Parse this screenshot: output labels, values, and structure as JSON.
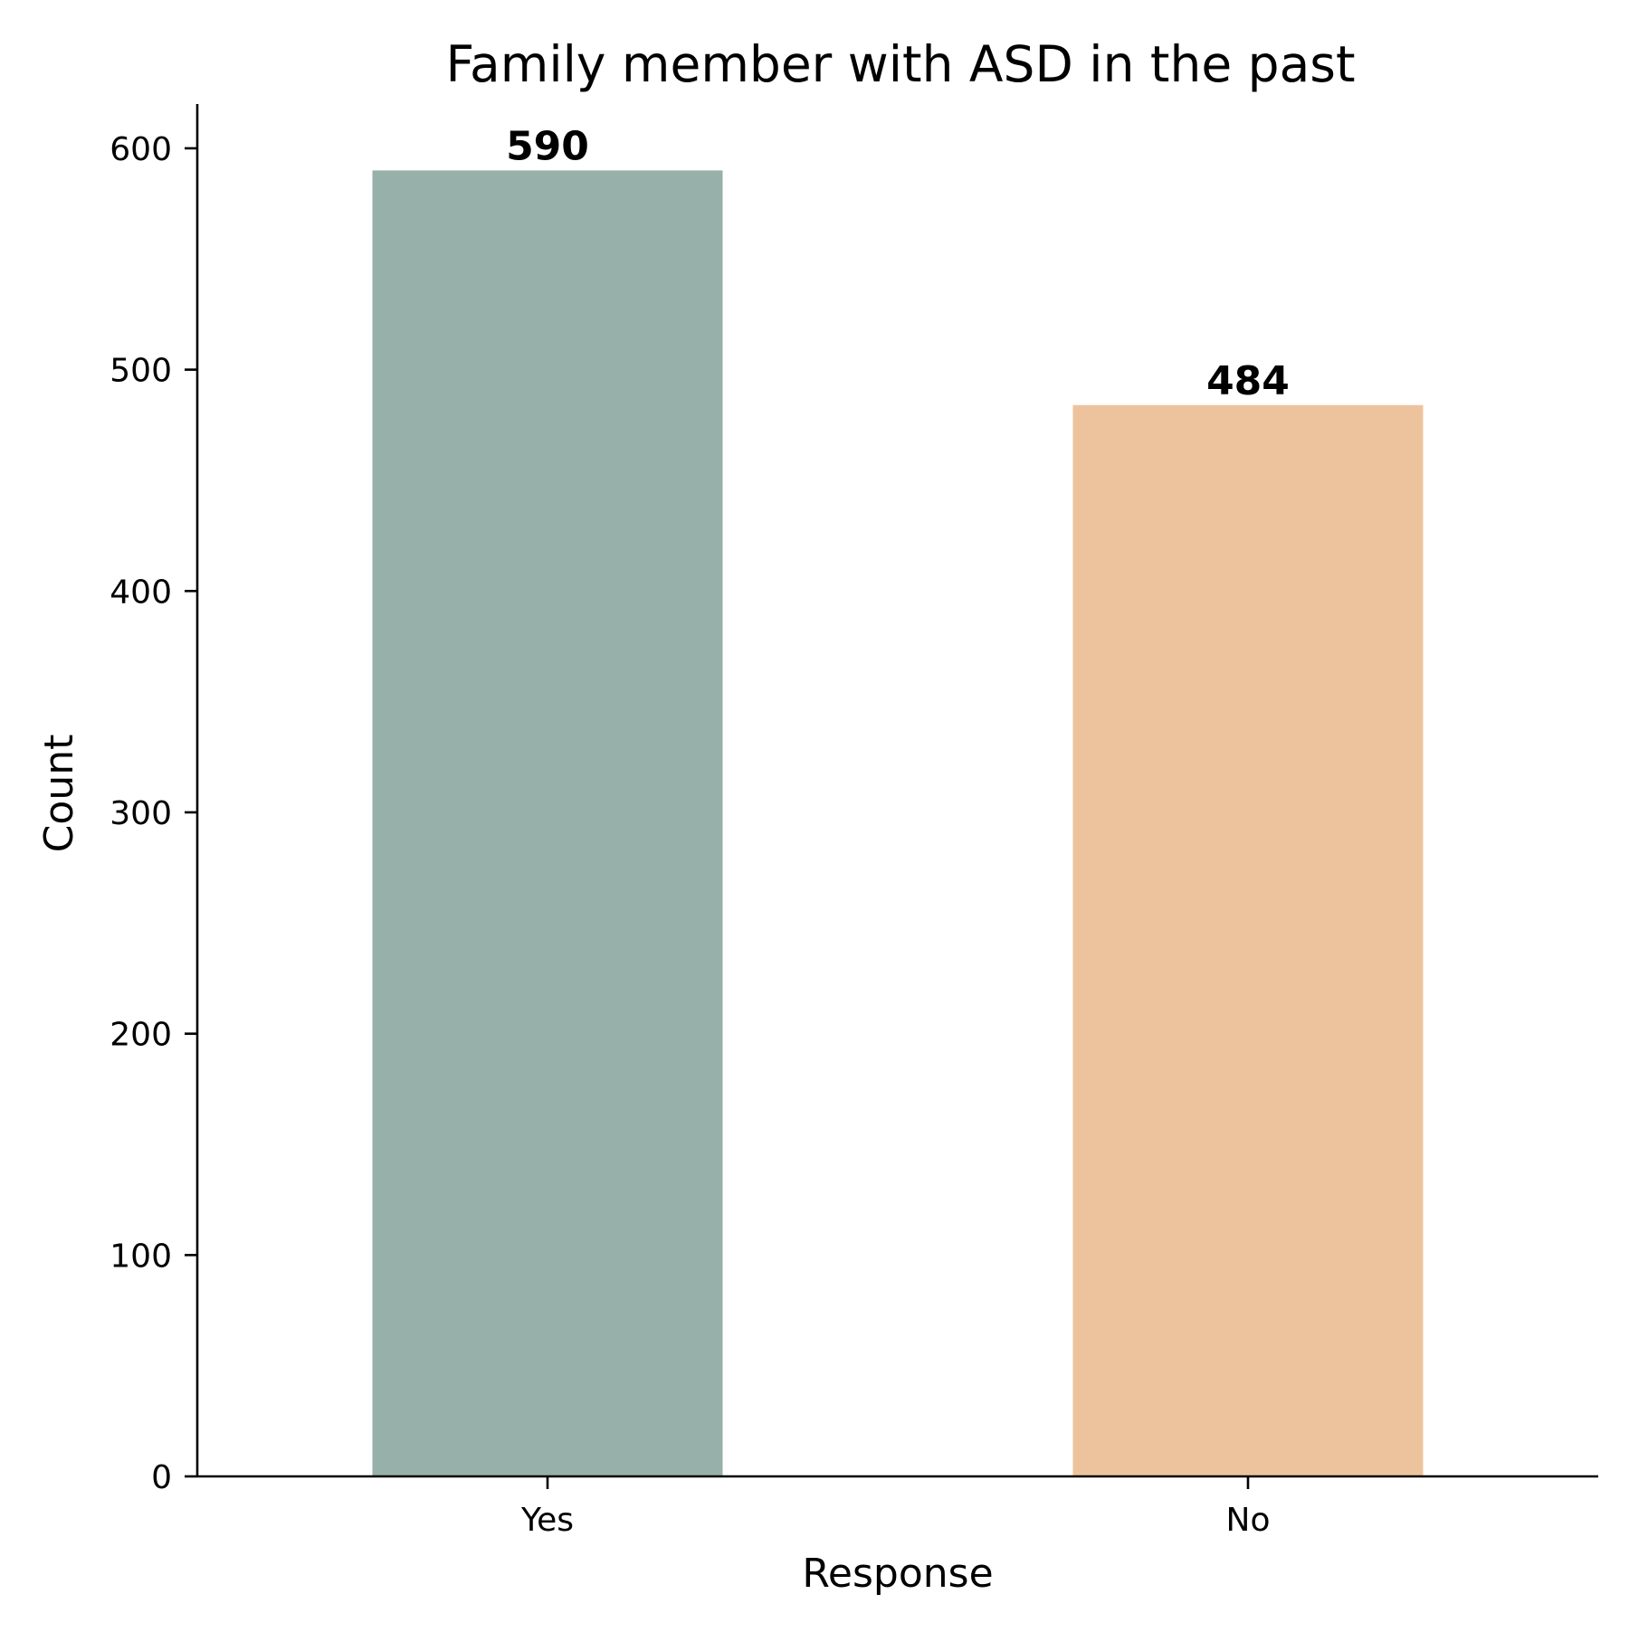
{
  "chart_data": {
    "type": "bar",
    "title": "Family member with ASD in the past",
    "xlabel": "Response",
    "ylabel": "Count",
    "categories": [
      "Yes",
      "No"
    ],
    "values": [
      590,
      484
    ],
    "data_labels": [
      "590",
      "484"
    ],
    "colors": [
      "#97b0aa",
      "#edc39e"
    ],
    "ylim": [
      0,
      620
    ],
    "yticks": [
      0,
      100,
      200,
      300,
      400,
      500,
      600
    ],
    "ytick_labels": [
      "0",
      "100",
      "200",
      "300",
      "400",
      "500",
      "600"
    ],
    "grid": false
  }
}
